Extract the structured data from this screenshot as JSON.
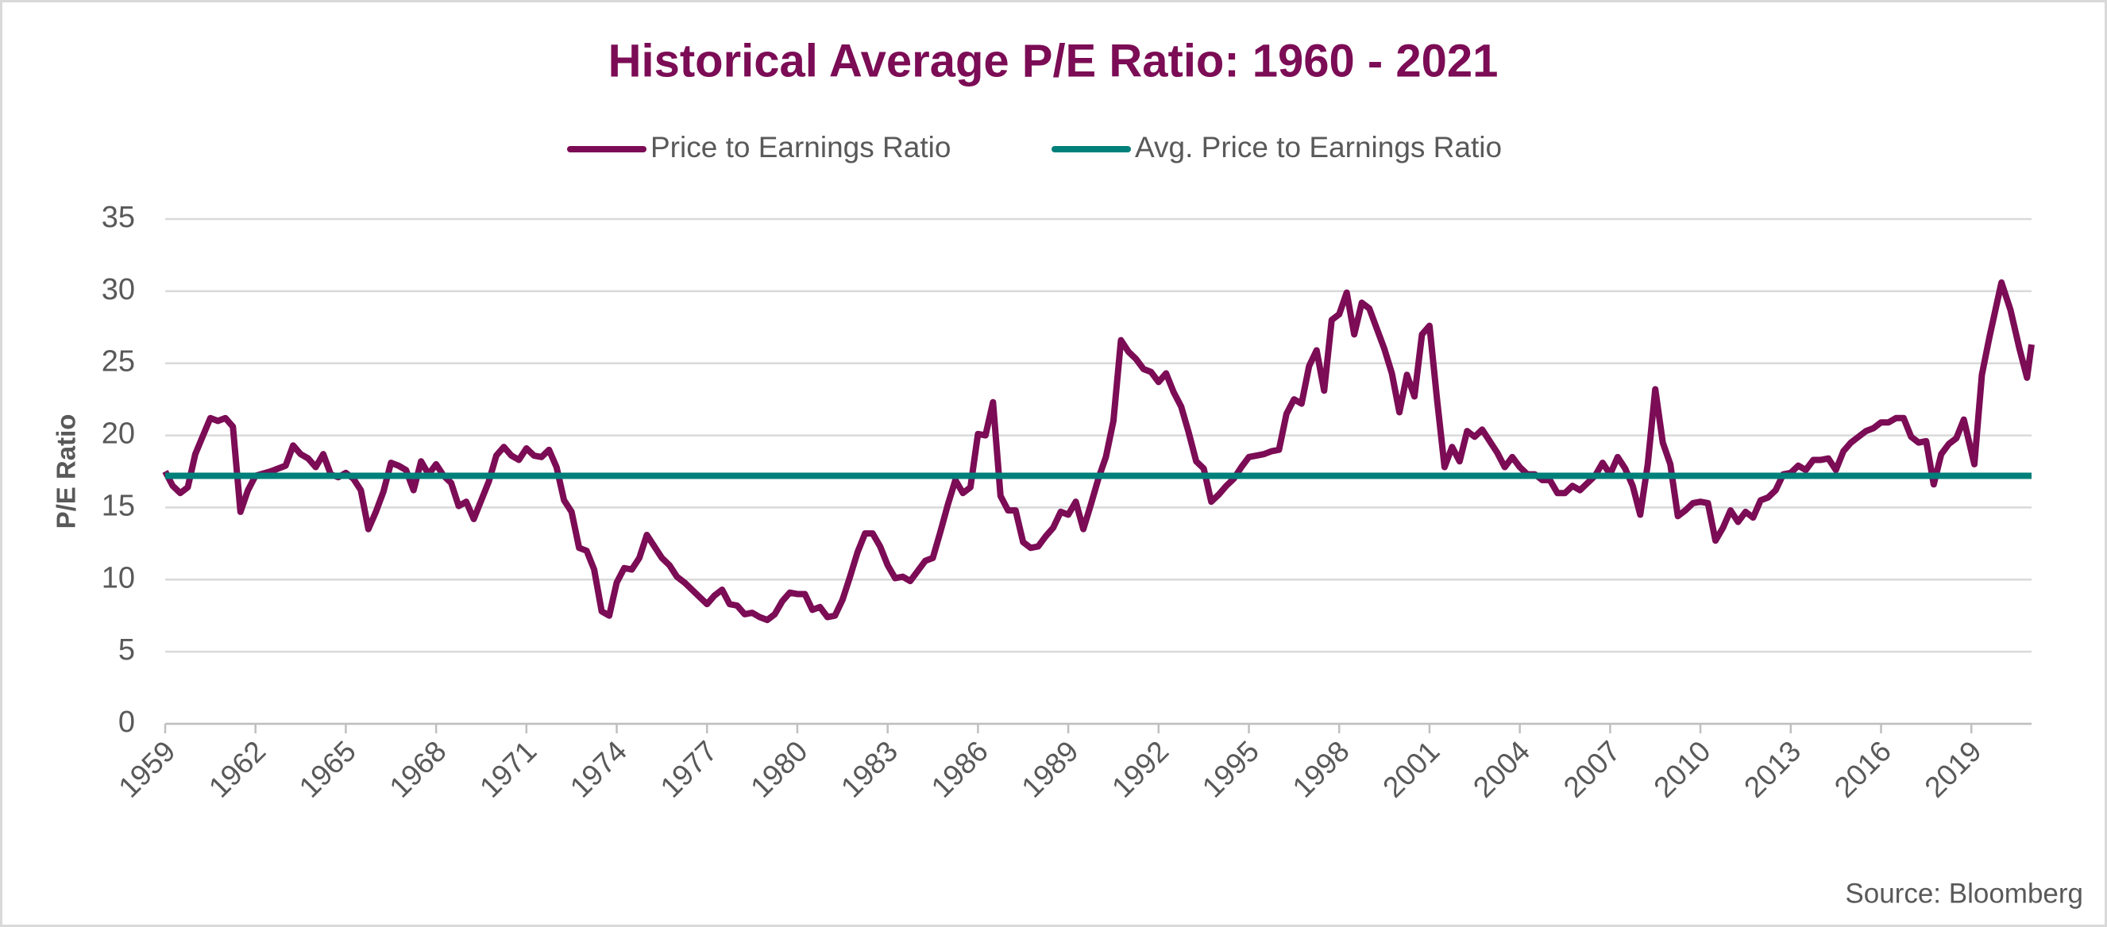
{
  "chart_data": {
    "type": "line",
    "title": "Historical Average P/E Ratio: 1960 - 2021",
    "y_label": "P/E Ratio",
    "source": "Source: Bloomberg",
    "xlim": [
      1959,
      2021
    ],
    "xticks": [
      1959,
      1962,
      1965,
      1968,
      1971,
      1974,
      1977,
      1980,
      1983,
      1986,
      1989,
      1992,
      1995,
      1998,
      2001,
      2004,
      2007,
      2010,
      2013,
      2016,
      2019
    ],
    "ylim": [
      0,
      35
    ],
    "yticks": [
      0,
      5,
      10,
      15,
      20,
      25,
      30,
      35
    ],
    "grid": true,
    "legend": "top",
    "series": [
      {
        "name": "Price to Earnings Ratio",
        "color": "#7b0c55",
        "x": [
          1959.0,
          1959.25,
          1959.5,
          1959.75,
          1960.0,
          1960.5,
          1960.75,
          1961.0,
          1961.25,
          1961.5,
          1961.75,
          1962.0,
          1962.5,
          1962.75,
          1963.0,
          1963.25,
          1963.5,
          1963.75,
          1964.0,
          1964.25,
          1964.5,
          1964.75,
          1965.0,
          1965.25,
          1965.5,
          1965.75,
          1966.0,
          1966.25,
          1966.5,
          1966.75,
          1967.0,
          1967.25,
          1967.5,
          1967.75,
          1968.0,
          1968.25,
          1968.5,
          1968.75,
          1969.0,
          1969.25,
          1969.5,
          1969.75,
          1970.0,
          1970.25,
          1970.5,
          1970.75,
          1971.0,
          1971.25,
          1971.5,
          1971.75,
          1972.0,
          1972.25,
          1972.5,
          1972.75,
          1973.0,
          1973.25,
          1973.5,
          1973.75,
          1974.0,
          1974.25,
          1974.5,
          1974.75,
          1975.0,
          1975.25,
          1975.5,
          1975.75,
          1976.0,
          1976.25,
          1976.5,
          1976.75,
          1977.0,
          1977.25,
          1977.5,
          1977.75,
          1978.0,
          1978.25,
          1978.5,
          1978.75,
          1979.0,
          1979.25,
          1979.5,
          1979.75,
          1980.0,
          1980.25,
          1980.5,
          1980.75,
          1981.0,
          1981.25,
          1981.5,
          1981.75,
          1982.0,
          1982.25,
          1982.5,
          1982.75,
          1983.0,
          1983.25,
          1983.5,
          1983.75,
          1984.0,
          1984.25,
          1984.5,
          1984.75,
          1985.0,
          1985.25,
          1985.5,
          1985.75,
          1986.0,
          1986.25,
          1986.5,
          1986.75,
          1987.0,
          1987.25,
          1987.5,
          1987.75,
          1988.0,
          1988.25,
          1988.5,
          1988.75,
          1989.0,
          1989.25,
          1989.5,
          1989.75,
          1990.0,
          1990.25,
          1990.5,
          1990.75,
          1991.0,
          1991.25,
          1991.5,
          1991.75,
          1992.0,
          1992.25,
          1992.5,
          1992.75,
          1993.0,
          1993.25,
          1993.5,
          1993.75,
          1994.0,
          1994.25,
          1994.5,
          1994.75,
          1995.0,
          1995.25,
          1995.5,
          1995.75,
          1996.0,
          1996.25,
          1996.5,
          1996.75,
          1997.0,
          1997.25,
          1997.5,
          1997.75,
          1998.0,
          1998.25,
          1998.5,
          1998.75,
          1999.0,
          1999.25,
          1999.5,
          1999.75,
          2000.0,
          2000.25,
          2000.5,
          2000.75,
          2001.0,
          2001.25,
          2001.5,
          2001.75,
          2002.0,
          2002.25,
          2002.5,
          2002.75,
          2003.0,
          2003.25,
          2003.5,
          2003.75,
          2004.0,
          2004.25,
          2004.5,
          2004.75,
          2005.0,
          2005.25,
          2005.5,
          2005.75,
          2006.0,
          2006.25,
          2006.5,
          2006.75,
          2007.0,
          2007.25,
          2007.5,
          2007.75,
          2008.0,
          2008.25,
          2008.5,
          2008.75,
          2009.0,
          2009.25,
          2009.5,
          2009.75,
          2010.0,
          2010.25,
          2010.5,
          2010.75,
          2011.0,
          2011.25,
          2011.5,
          2011.75,
          2012.0,
          2012.25,
          2012.5,
          2012.75,
          2013.0,
          2013.25,
          2013.5,
          2013.75,
          2014.0,
          2014.25,
          2014.5,
          2014.75,
          2015.0,
          2015.25,
          2015.5,
          2015.75,
          2016.0,
          2016.25,
          2016.5,
          2016.75,
          2017.0,
          2017.25,
          2017.5,
          2017.75,
          2018.0,
          2018.25,
          2018.5,
          2018.75,
          2019.1,
          2019.35,
          2019.6,
          2020.0,
          2020.3,
          2020.6,
          2020.85,
          2021.0
        ],
        "values": [
          17.5,
          16.5,
          16.0,
          16.4,
          18.7,
          21.2,
          21.0,
          21.2,
          20.6,
          14.7,
          16.2,
          17.2,
          17.5,
          17.7,
          17.9,
          19.3,
          18.7,
          18.4,
          17.8,
          18.7,
          17.3,
          17.1,
          17.4,
          17.0,
          16.2,
          13.5,
          14.7,
          16.1,
          18.1,
          17.9,
          17.6,
          16.2,
          18.2,
          17.3,
          18.0,
          17.2,
          16.7,
          15.1,
          15.4,
          14.2,
          15.5,
          16.8,
          18.6,
          19.2,
          18.6,
          18.3,
          19.1,
          18.6,
          18.5,
          19.0,
          17.8,
          15.5,
          14.7,
          12.2,
          12.0,
          10.7,
          7.8,
          7.5,
          9.8,
          10.8,
          10.7,
          11.5,
          13.1,
          12.3,
          11.5,
          11.0,
          10.2,
          9.8,
          9.3,
          8.8,
          8.3,
          8.9,
          9.3,
          8.3,
          8.2,
          7.6,
          7.7,
          7.4,
          7.2,
          7.6,
          8.5,
          9.1,
          9.0,
          9.0,
          7.9,
          8.1,
          7.4,
          7.5,
          8.6,
          10.2,
          11.9,
          13.2,
          13.2,
          12.3,
          11.0,
          10.1,
          10.2,
          9.9,
          10.6,
          11.3,
          11.5,
          13.3,
          15.2,
          16.9,
          16.0,
          16.4,
          20.1,
          20.0,
          22.3,
          15.8,
          14.8,
          14.8,
          12.6,
          12.2,
          12.3,
          13.0,
          13.6,
          14.7,
          14.5,
          15.4,
          13.5,
          15.2,
          17.0,
          18.5,
          21.0,
          26.6,
          25.8,
          25.3,
          24.6,
          24.4,
          23.7,
          24.3,
          23.0,
          22.0,
          20.2,
          18.2,
          17.7,
          15.4,
          15.9,
          16.5,
          17.0,
          17.8,
          18.5,
          18.6,
          18.7,
          18.9,
          19.0,
          21.5,
          22.5,
          22.2,
          24.8,
          25.9,
          23.1,
          28.0,
          28.4,
          29.9,
          27.0,
          29.2,
          28.8,
          27.4,
          26.0,
          24.3,
          21.6,
          24.2,
          22.7,
          27.0,
          27.6,
          22.5,
          17.8,
          19.2,
          18.2,
          20.3,
          19.9,
          20.4,
          19.6,
          18.8,
          17.8,
          18.5,
          17.8,
          17.3,
          17.3,
          16.9,
          16.9,
          16.0,
          16.0,
          16.5,
          16.2,
          16.7,
          17.2,
          18.1,
          17.3,
          18.5,
          17.7,
          16.5,
          14.5,
          18.0,
          23.2,
          19.5,
          18.0,
          14.4,
          14.8,
          15.3,
          15.4,
          15.3,
          12.7,
          13.6,
          14.8,
          14.0,
          14.7,
          14.3,
          15.5,
          15.7,
          16.2,
          17.3,
          17.4,
          17.9,
          17.6,
          18.3,
          18.3,
          18.4,
          17.6,
          18.9,
          19.5,
          19.9,
          20.3,
          20.5,
          20.9,
          20.9,
          21.2,
          21.2,
          19.9,
          19.5,
          19.6,
          16.6,
          18.7,
          19.4,
          19.8,
          21.1,
          18.0,
          24.2,
          26.8,
          30.6,
          28.7,
          26.0,
          24.0,
          26.3
        ]
      },
      {
        "name": "Avg. Price to Earnings Ratio",
        "color": "#00807a",
        "x": [
          1959,
          2021
        ],
        "values": [
          17.2,
          17.2
        ]
      }
    ]
  }
}
